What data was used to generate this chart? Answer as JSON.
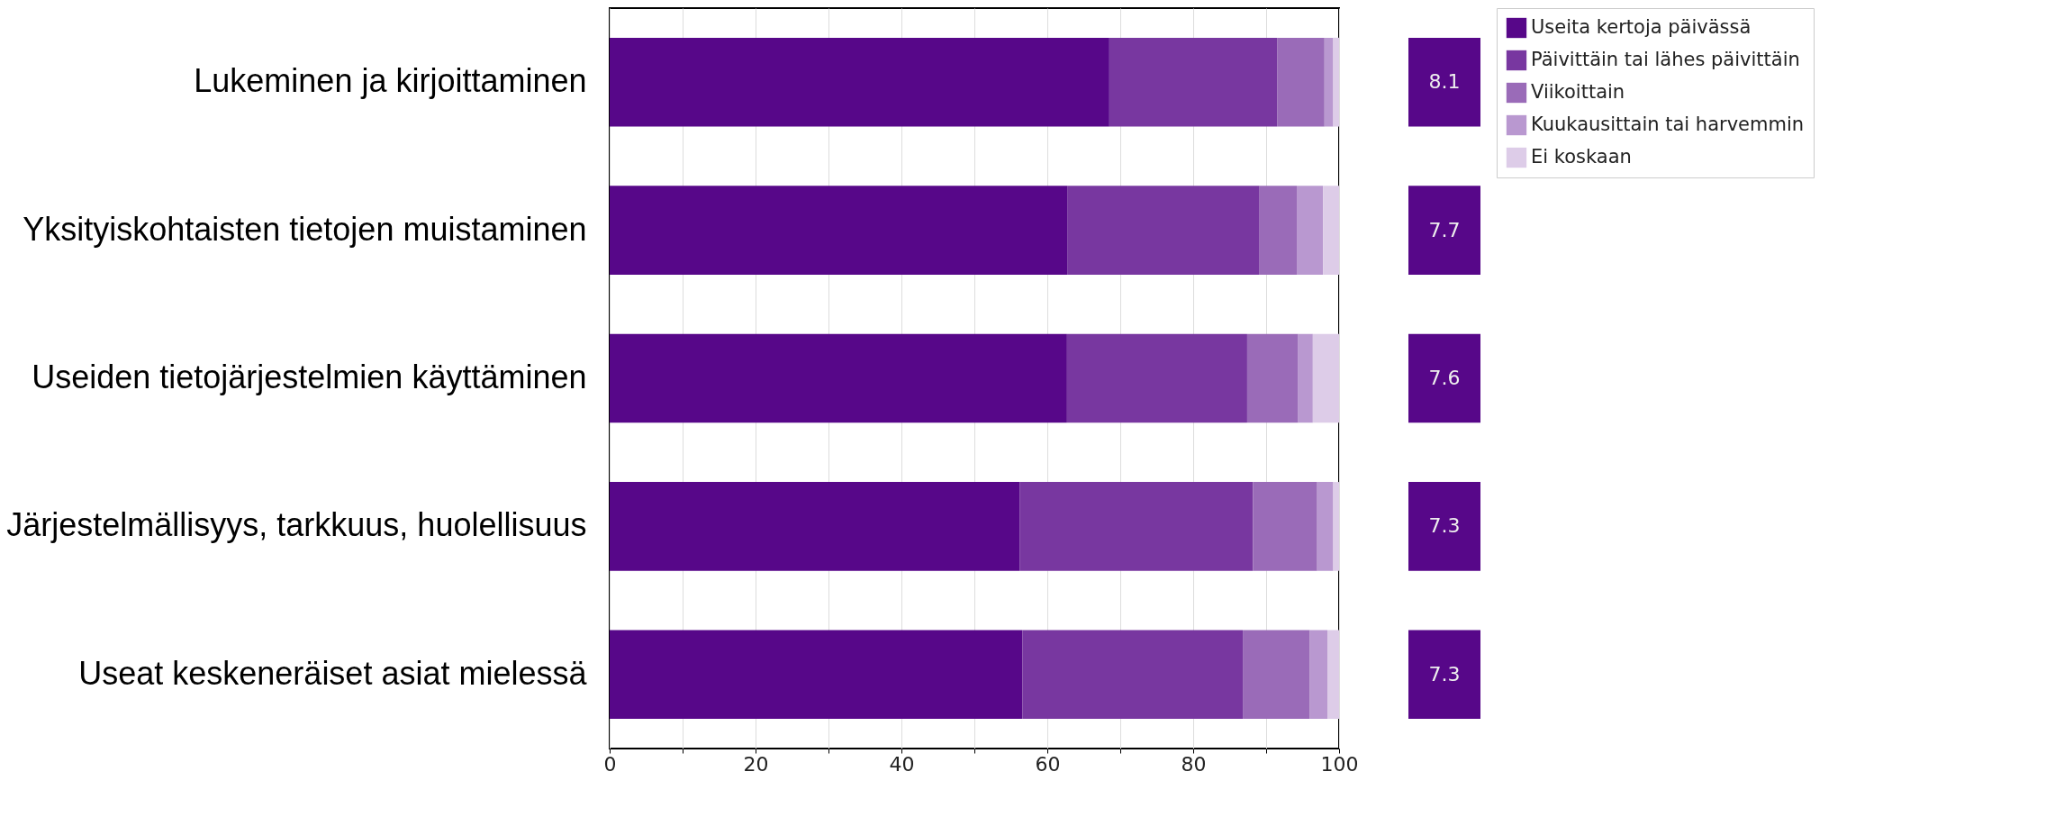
{
  "chart_data": [
    {
      "type": "bar",
      "orientation": "horizontal",
      "stacked": true,
      "categories": [
        "Lukeminen ja kirjoittaminen",
        "Yksityiskohtaisten tietojen muistaminen",
        "Useiden tietojärjestelmien käyttäminen",
        "Järjestelmällisyys, tarkkuus, huolellisuus",
        "Useat keskeneräiset asiat mielessä"
      ],
      "series": [
        {
          "name": "Useita kertoja päivässä",
          "color": "#570789",
          "values": [
            68.5,
            62.8,
            62.7,
            56.2,
            56.6
          ]
        },
        {
          "name": "Päivittäin tai lähes päivittäin",
          "color": "#7837a0",
          "values": [
            23.0,
            26.3,
            24.7,
            32.0,
            30.2
          ]
        },
        {
          "name": "Viikoittain",
          "color": "#9a6bb8",
          "values": [
            6.5,
            5.1,
            7.0,
            8.8,
            9.2
          ]
        },
        {
          "name": "Kuukausittain tai harvemmin",
          "color": "#b998d0",
          "values": [
            1.2,
            3.6,
            2.0,
            2.2,
            2.4
          ]
        },
        {
          "name": "Ei koskaan",
          "color": "#ddcce8",
          "values": [
            0.8,
            2.2,
            3.6,
            0.8,
            1.6
          ]
        }
      ],
      "xlim": [
        0,
        100
      ],
      "xticks": [
        0,
        {
          "value": 10,
          "label": null
        },
        20,
        {
          "value": 30,
          "label": null
        },
        40,
        {
          "value": 50,
          "label": null
        },
        60,
        {
          "value": 70,
          "label": null
        },
        80,
        {
          "value": 90,
          "label": null
        },
        100
      ],
      "grid": "x",
      "legend": "top right"
    },
    {
      "type": "other",
      "annotations": [
        "8.1",
        "7.7",
        "7.6",
        "7.3",
        "7.3"
      ]
    }
  ]
}
